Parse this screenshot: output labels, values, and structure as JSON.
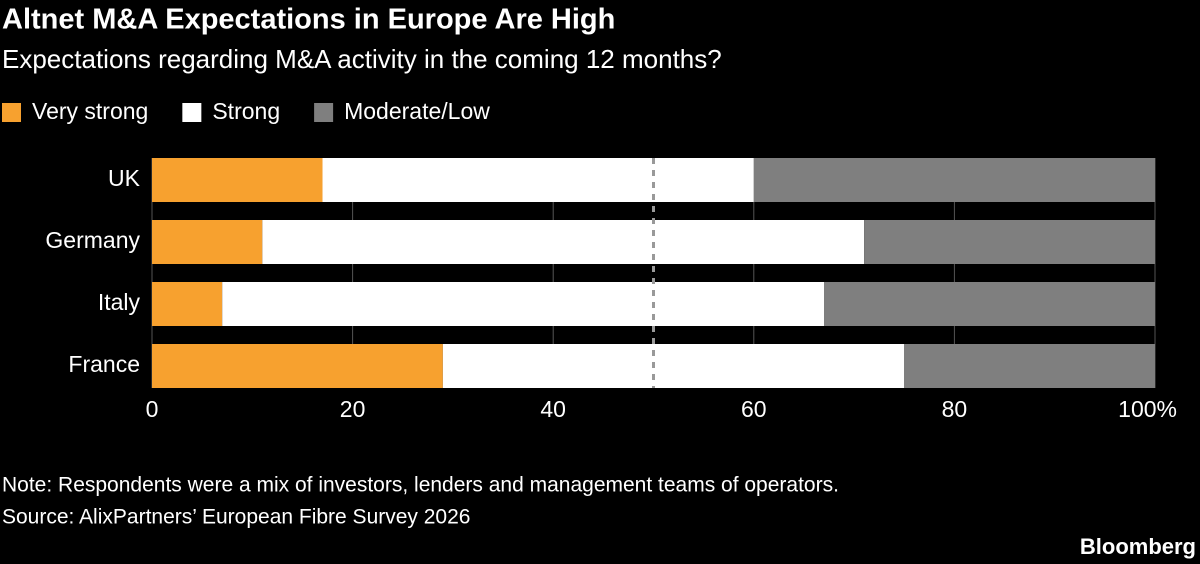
{
  "chart_data": {
    "type": "stacked_barh",
    "title": "Altnet M&A Expectations in Europe Are High",
    "subtitle": "Expectations regarding M&A activity in the coming 12 months?",
    "categories": [
      "UK",
      "Germany",
      "Italy",
      "France"
    ],
    "series": [
      {
        "name": "Very strong",
        "color": "#f7a12f",
        "values": [
          17,
          11,
          7,
          29
        ]
      },
      {
        "name": "Strong",
        "color": "#ffffff",
        "values": [
          43,
          60,
          60,
          46
        ]
      },
      {
        "name": "Moderate/Low",
        "color": "#7f7f7f",
        "values": [
          40,
          29,
          33,
          25
        ]
      }
    ],
    "xlim": [
      0,
      100
    ],
    "xticks": [
      0,
      20,
      40,
      60,
      80,
      {
        "value": 100,
        "label": "100%"
      }
    ],
    "grid": true,
    "reference_line": 50,
    "legend": "top-left",
    "note": "Note: Respondents were a mix of investors, lenders and management teams of operators.",
    "source": "Source: AlixPartners’ European Fibre Survey 2026",
    "brand": "Bloomberg"
  }
}
